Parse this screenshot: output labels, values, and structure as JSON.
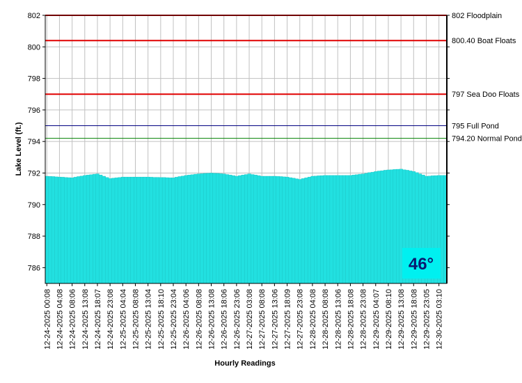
{
  "chart_data": {
    "type": "bar",
    "y_label": "Lake Level (ft.)",
    "x_label": "Hourly Readings",
    "annotation": "46°",
    "color": "#22e0e0",
    "grid": true,
    "ylim": [
      785,
      802
    ],
    "yticks": [
      786,
      788,
      790,
      792,
      794,
      796,
      798,
      800,
      802
    ],
    "reference_lines": [
      {
        "value": 802,
        "label": "802 Floodplain",
        "color": "#e00000"
      },
      {
        "value": 800.4,
        "label": "800.40 Boat Floats",
        "color": "#e00000"
      },
      {
        "value": 797,
        "label": "797 Sea Doo Floats",
        "color": "#e00000"
      },
      {
        "value": 795,
        "label": "795 Full Pond",
        "color": "#000080"
      },
      {
        "value": 794.2,
        "label": "794.20 Normal Pond",
        "color": "#008000"
      }
    ],
    "categories": [
      "12-24-2025 00:08",
      null,
      null,
      null,
      "12-24-2025 04:08",
      null,
      null,
      null,
      "12-24-2025 08:06",
      null,
      null,
      null,
      "12-24-2025 13:08",
      null,
      null,
      null,
      "12-24-2025 18:07",
      null,
      null,
      null,
      "12-24-2025 23:08",
      null,
      null,
      null,
      "12-25-2025 04:04",
      null,
      null,
      null,
      "12-25-2025 08:08",
      null,
      null,
      null,
      "12-25-2025 13:04",
      null,
      null,
      null,
      "12-25-2025 18:10",
      null,
      null,
      null,
      "12-25-2025 23:04",
      null,
      null,
      null,
      "12-26-2025 04:06",
      null,
      null,
      null,
      "12-26-2025 08:08",
      null,
      null,
      null,
      "12-26-2025 13:08",
      null,
      null,
      null,
      "12-26-2025 18:06",
      null,
      null,
      null,
      "12-26-2025 23:06",
      null,
      null,
      null,
      "12-27-2025 03:08",
      null,
      null,
      null,
      "12-27-2025 08:08",
      null,
      null,
      null,
      "12-27-2025 13:06",
      null,
      null,
      null,
      "12-27-2025 18:09",
      null,
      null,
      null,
      "12-27-2025 23:08",
      null,
      null,
      null,
      "12-28-2025 04:08",
      null,
      null,
      null,
      "12-28-2025 08:08",
      null,
      null,
      null,
      "12-28-2025 13:06",
      null,
      null,
      null,
      "12-28-2025 18:08",
      null,
      null,
      null,
      "12-28-2025 23:08",
      null,
      null,
      null,
      "12-29-2025 04:07",
      null,
      null,
      null,
      "12-29-2025 08:10",
      null,
      null,
      null,
      "12-29-2025 13:08",
      null,
      null,
      null,
      "12-29-2025 18:08",
      null,
      null,
      null,
      "12-29-2025 23:05",
      null,
      null,
      null,
      "12-30-2025 03:10",
      null,
      null
    ],
    "values": [
      791.8,
      791.79,
      791.78,
      791.76,
      791.75,
      791.74,
      791.72,
      791.71,
      791.7,
      791.74,
      791.78,
      791.81,
      791.85,
      791.88,
      791.9,
      791.93,
      791.95,
      791.88,
      791.8,
      791.72,
      791.65,
      791.68,
      791.7,
      791.72,
      791.75,
      791.75,
      791.75,
      791.75,
      791.75,
      791.75,
      791.75,
      791.75,
      791.75,
      791.74,
      791.73,
      791.73,
      791.72,
      791.72,
      791.71,
      791.7,
      791.7,
      791.74,
      791.78,
      791.81,
      791.85,
      791.88,
      791.9,
      791.93,
      791.95,
      791.96,
      791.98,
      791.99,
      792.0,
      791.99,
      791.98,
      791.96,
      791.95,
      791.91,
      791.88,
      791.84,
      791.8,
      791.84,
      791.88,
      791.91,
      791.95,
      791.91,
      791.88,
      791.84,
      791.8,
      791.8,
      791.8,
      791.8,
      791.8,
      791.79,
      791.78,
      791.76,
      791.75,
      791.71,
      791.68,
      791.64,
      791.6,
      791.65,
      791.7,
      791.75,
      791.8,
      791.81,
      791.83,
      791.84,
      791.85,
      791.85,
      791.85,
      791.85,
      791.85,
      791.85,
      791.85,
      791.85,
      791.85,
      791.88,
      791.9,
      791.93,
      791.95,
      791.99,
      792.03,
      792.06,
      792.1,
      792.13,
      792.15,
      792.18,
      792.2,
      792.21,
      792.23,
      792.24,
      792.25,
      792.21,
      792.18,
      792.14,
      792.1,
      792.03,
      791.95,
      791.88,
      791.8,
      791.81,
      791.83,
      791.84,
      791.85,
      791.85,
      791.85
    ]
  }
}
